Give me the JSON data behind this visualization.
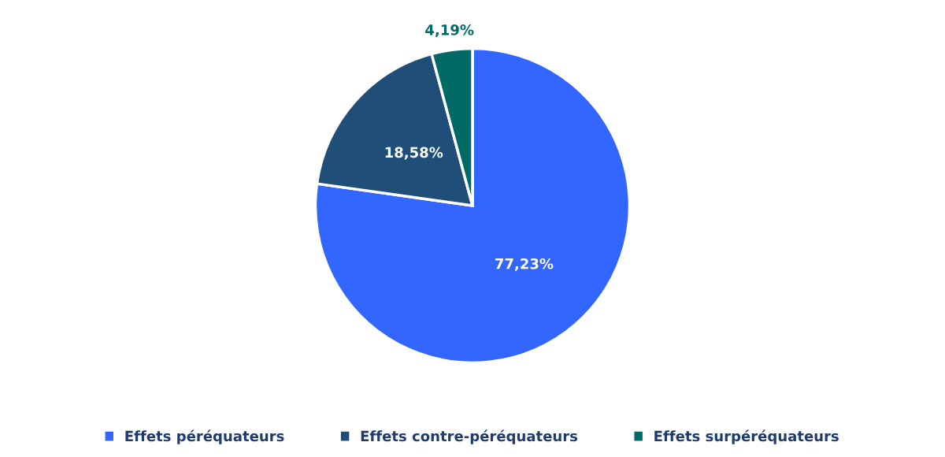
{
  "chart_data": {
    "type": "pie",
    "categories": [
      "Effets péréquateurs",
      "Effets contre-péréquateurs",
      "Effets surpéréquateurs"
    ],
    "values": [
      77.23,
      18.58,
      4.19
    ],
    "value_labels": [
      "77,23%",
      "18,58%",
      "4,19%"
    ],
    "colors": [
      "#3366ff",
      "#1f4e79",
      "#006a66"
    ],
    "legend": "bottom"
  }
}
